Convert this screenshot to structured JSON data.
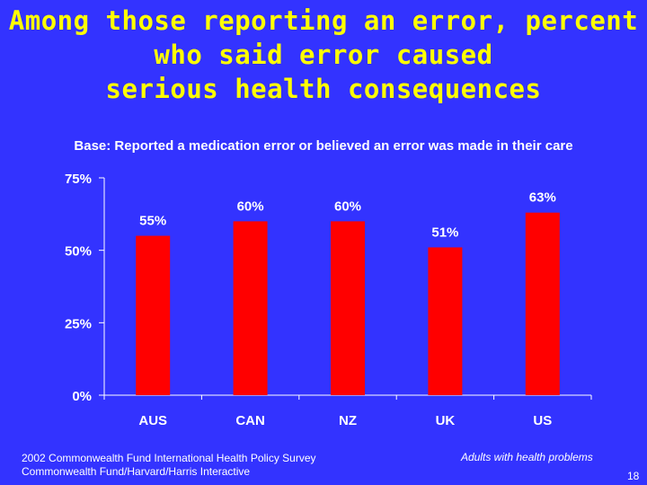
{
  "slide": {
    "title_lines": [
      "Among those reporting an error, percent",
      "who said error caused",
      "serious health consequences"
    ],
    "subtitle": "Base: Reported a medication error or believed an error was made in their care",
    "footer_source_lines": [
      "2002 Commonwealth Fund International Health Policy Survey",
      "Commonwealth Fund/Harvard/Harris Interactive"
    ],
    "footer_note": "Adults with health problems",
    "page_number": "18"
  },
  "colors": {
    "background": "#3333ff",
    "title": "#ffff00",
    "text": "#ffffff",
    "bar": "#ff0000",
    "axis": "#ffffff"
  },
  "chart_data": {
    "type": "bar",
    "categories": [
      "AUS",
      "CAN",
      "NZ",
      "UK",
      "US"
    ],
    "values": [
      55,
      60,
      60,
      51,
      63
    ],
    "value_labels": [
      "55%",
      "60%",
      "60%",
      "51%",
      "63%"
    ],
    "ylim": [
      0,
      75
    ],
    "yticks": [
      0,
      25,
      50,
      75
    ],
    "ytick_labels": [
      "0%",
      "25%",
      "50%",
      "75%"
    ],
    "grid": false,
    "legend": "none",
    "xlabel": "",
    "ylabel": ""
  }
}
